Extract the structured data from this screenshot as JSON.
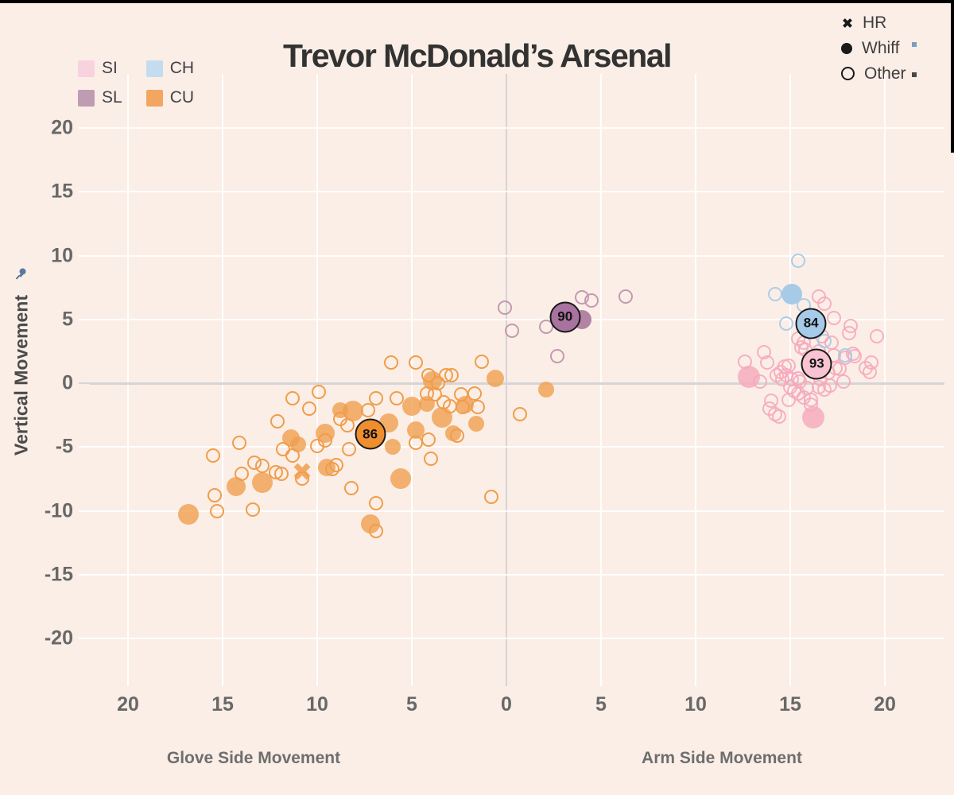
{
  "title": "Trevor McDonald’s Arsenal",
  "pitch_legend": {
    "items": [
      {
        "label": "SI",
        "color": "#f8d2de"
      },
      {
        "label": "CH",
        "color": "#c3dcf0"
      },
      {
        "label": "SL",
        "color": "#c09cb2"
      },
      {
        "label": "CU",
        "color": "#f2a65f"
      }
    ]
  },
  "result_legend": {
    "items": [
      {
        "label": "HR",
        "marker": "x-cross"
      },
      {
        "label": "Whiff",
        "marker": "filled-circle"
      },
      {
        "label": "Other",
        "marker": "open-circle"
      }
    ]
  },
  "y_axis": {
    "label": "Vertical Movement",
    "ticks": [
      20,
      15,
      10,
      5,
      0,
      -5,
      -10,
      -15,
      -20
    ],
    "pin_icon": "pushpin-icon"
  },
  "x_axis": {
    "left_label": "Glove Side Movement",
    "right_label": "Arm Side Movement",
    "tick_labels": [
      20,
      15,
      10,
      5,
      0,
      5,
      10,
      15,
      20
    ]
  },
  "colors": {
    "background": "#fbeee6",
    "cu_stroke": "#f09d4b",
    "cu_whiff": "rgba(240,157,75,0.78)",
    "cu_avg": "#ee8e2f",
    "si_stroke": "rgba(246,168,188,0.9)",
    "si_whiff": "rgba(246,168,188,0.8)",
    "si_avg": "#f8c3d3",
    "sl_stroke": "rgba(193,148,176,0.95)",
    "sl_whiff": "rgba(172,122,158,0.92)",
    "sl_avg": "#a8739e",
    "ch_stroke": "rgba(168,203,232,0.95)",
    "ch_whiff": "rgba(162,199,230,0.95)",
    "ch_avg": "#a5cbe9",
    "gridline": "rgba(255,255,255,0.9)",
    "zero_line": "#d5d5d5"
  },
  "chart_data": {
    "type": "scatter",
    "title": "Trevor McDonald’s Arsenal",
    "x_encoding": "negative x = Glove Side Movement, positive x = Arm Side Movement",
    "point_format": [
      "x",
      "y",
      "diameter_px_optional"
    ],
    "x_range": [
      -22,
      23.2
    ],
    "y_range": [
      -22.9,
      24.2
    ],
    "series": [
      {
        "pitch": "CU",
        "result": "other",
        "points": [
          [
            -15.5,
            -5.7
          ],
          [
            -15.4,
            -8.8
          ],
          [
            -15.3,
            -10.0
          ],
          [
            -14.1,
            -4.7
          ],
          [
            -14.0,
            -7.1
          ],
          [
            -13.4,
            -9.9
          ],
          [
            -13.3,
            -6.2
          ],
          [
            -12.9,
            -6.5
          ],
          [
            -12.2,
            -7.0
          ],
          [
            -12.1,
            -3.0
          ],
          [
            -11.9,
            -7.1
          ],
          [
            -11.8,
            -5.2
          ],
          [
            -11.3,
            -1.2
          ],
          [
            -11.3,
            -5.7
          ],
          [
            -10.8,
            -7.5
          ],
          [
            -10.4,
            -2.0
          ],
          [
            -10.0,
            -4.9
          ],
          [
            -9.9,
            -0.7
          ],
          [
            -9.6,
            -4.5
          ],
          [
            -9.2,
            -6.7
          ],
          [
            -9.0,
            -6.4
          ],
          [
            -8.8,
            -2.8
          ],
          [
            -8.4,
            -3.3
          ],
          [
            -8.3,
            -5.2
          ],
          [
            -8.2,
            -8.2
          ],
          [
            -7.3,
            -2.1
          ],
          [
            -6.9,
            -1.2
          ],
          [
            -6.9,
            -9.4
          ],
          [
            -6.9,
            -11.6
          ],
          [
            -6.1,
            1.6
          ],
          [
            -5.8,
            -1.2
          ],
          [
            -4.8,
            1.6
          ],
          [
            -4.8,
            -4.7
          ],
          [
            -4.2,
            -0.8
          ],
          [
            -4.1,
            0.6
          ],
          [
            -4.1,
            -4.4
          ],
          [
            -4.0,
            -5.9
          ],
          [
            -3.8,
            -0.9
          ],
          [
            -3.6,
            0.0
          ],
          [
            -3.3,
            -1.5
          ],
          [
            -3.2,
            0.6
          ],
          [
            -3.0,
            -1.8
          ],
          [
            -2.9,
            0.6
          ],
          [
            -2.6,
            -4.1
          ],
          [
            -2.4,
            -0.9
          ],
          [
            -2.3,
            -1.9
          ],
          [
            -1.7,
            -0.8
          ],
          [
            -1.5,
            -1.9
          ],
          [
            -1.3,
            1.7
          ],
          [
            -0.8,
            -8.9
          ],
          [
            0.7,
            -2.4
          ]
        ]
      },
      {
        "pitch": "CU",
        "result": "whiff",
        "points": [
          [
            -16.8,
            -10.3,
            26
          ],
          [
            -14.3,
            -8.1,
            24
          ],
          [
            -12.9,
            -7.8,
            26
          ],
          [
            -11.4,
            -4.3,
            22
          ],
          [
            -11.0,
            -4.8,
            20
          ],
          [
            -9.6,
            -3.9,
            24
          ],
          [
            -9.5,
            -6.6,
            22
          ],
          [
            -8.8,
            -2.1,
            20
          ],
          [
            -8.1,
            -2.2,
            26
          ],
          [
            -7.2,
            -11.0,
            24
          ],
          [
            -6.2,
            -3.1,
            24
          ],
          [
            -6.0,
            -5.0,
            20
          ],
          [
            -5.6,
            -7.5,
            26
          ],
          [
            -5.0,
            -1.8,
            24
          ],
          [
            -4.8,
            -3.7,
            22
          ],
          [
            -4.2,
            -1.6,
            20
          ],
          [
            -3.9,
            0.2,
            24
          ],
          [
            -3.4,
            -2.7,
            26
          ],
          [
            -2.8,
            -3.9,
            20
          ],
          [
            -2.2,
            -1.7,
            22
          ],
          [
            -1.6,
            -3.2,
            20
          ],
          [
            -0.6,
            0.4,
            22
          ],
          [
            2.1,
            -0.5,
            20
          ]
        ]
      },
      {
        "pitch": "CU",
        "result": "hr",
        "points": [
          [
            -10.8,
            -6.9,
            24
          ]
        ]
      },
      {
        "pitch": "SI",
        "result": "other",
        "points": [
          [
            12.6,
            1.7
          ],
          [
            13.4,
            0.1
          ],
          [
            13.6,
            2.4
          ],
          [
            13.8,
            1.6
          ],
          [
            13.9,
            -2.0
          ],
          [
            14.0,
            -1.4
          ],
          [
            14.2,
            -2.4
          ],
          [
            14.3,
            0.6
          ],
          [
            14.4,
            -2.6
          ],
          [
            14.5,
            0.9
          ],
          [
            14.6,
            0.3
          ],
          [
            14.7,
            1.3
          ],
          [
            14.8,
            0.6
          ],
          [
            14.9,
            1.4
          ],
          [
            14.9,
            -1.3
          ],
          [
            15.0,
            -0.3
          ],
          [
            15.1,
            0.3
          ],
          [
            15.2,
            -0.6
          ],
          [
            15.4,
            0.4
          ],
          [
            15.4,
            -0.8
          ],
          [
            15.4,
            3.5
          ],
          [
            15.5,
            0.1
          ],
          [
            15.6,
            2.8
          ],
          [
            15.7,
            3.2
          ],
          [
            15.7,
            -1.1
          ],
          [
            15.8,
            2.6
          ],
          [
            15.9,
            -0.4
          ],
          [
            16.1,
            -1.3
          ],
          [
            16.1,
            -1.7
          ],
          [
            16.5,
            2.5
          ],
          [
            16.5,
            6.8
          ],
          [
            16.5,
            -0.3
          ],
          [
            16.6,
            0.3
          ],
          [
            16.7,
            3.7
          ],
          [
            16.8,
            6.2
          ],
          [
            16.8,
            -0.5
          ],
          [
            17.0,
            0.8
          ],
          [
            17.1,
            -0.2
          ],
          [
            17.2,
            3.2
          ],
          [
            17.3,
            2.2
          ],
          [
            17.3,
            5.1
          ],
          [
            17.4,
            1.2
          ],
          [
            17.6,
            1.1
          ],
          [
            17.8,
            0.1
          ],
          [
            17.9,
            2.0
          ],
          [
            18.1,
            3.9
          ],
          [
            18.2,
            4.5
          ],
          [
            18.3,
            2.3
          ],
          [
            18.4,
            2.1
          ],
          [
            19.0,
            1.2
          ],
          [
            19.2,
            0.9
          ],
          [
            19.3,
            1.6
          ],
          [
            19.6,
            3.7
          ]
        ]
      },
      {
        "pitch": "SI",
        "result": "whiff",
        "points": [
          [
            12.8,
            0.5,
            28
          ],
          [
            16.2,
            -2.7,
            28
          ]
        ]
      },
      {
        "pitch": "SL",
        "result": "other",
        "points": [
          [
            -0.1,
            5.9
          ],
          [
            0.3,
            4.1
          ],
          [
            2.1,
            4.4
          ],
          [
            2.7,
            2.1
          ],
          [
            4.0,
            6.7
          ],
          [
            4.5,
            6.5
          ],
          [
            6.3,
            6.8
          ]
        ]
      },
      {
        "pitch": "SL",
        "result": "whiff",
        "points": [
          [
            4.0,
            5.0,
            24
          ]
        ]
      },
      {
        "pitch": "CH",
        "result": "other",
        "points": [
          [
            14.2,
            7.0
          ],
          [
            14.8,
            4.7
          ],
          [
            15.4,
            9.6
          ],
          [
            15.7,
            6.1
          ],
          [
            16.8,
            3.3
          ],
          [
            17.9,
            2.2
          ]
        ]
      },
      {
        "pitch": "CH",
        "result": "whiff",
        "points": [
          [
            15.1,
            7.0,
            26
          ]
        ]
      }
    ],
    "averages": [
      {
        "pitch": "CU",
        "speed_label": "86",
        "x": -7.2,
        "y": -4.0
      },
      {
        "pitch": "SL",
        "speed_label": "90",
        "x": 3.1,
        "y": 5.2
      },
      {
        "pitch": "CH",
        "speed_label": "84",
        "x": 16.1,
        "y": 4.7
      },
      {
        "pitch": "SI",
        "speed_label": "93",
        "x": 16.4,
        "y": 1.5
      }
    ]
  }
}
